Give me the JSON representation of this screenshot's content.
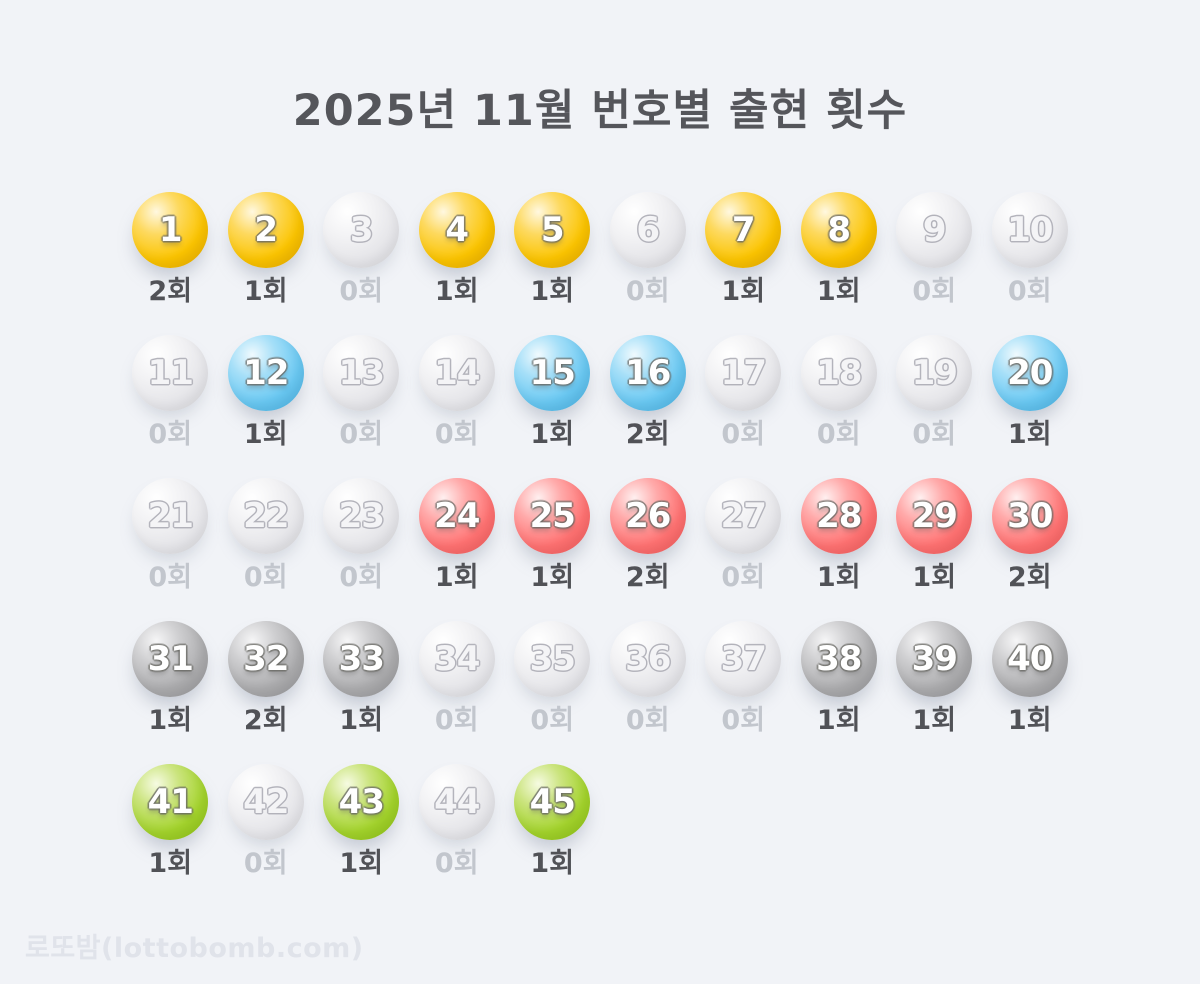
{
  "title": "2025년 11월 번호별 출현 횟수",
  "watermark": "로또밤(lottobomb.com)",
  "count_suffix": "회",
  "colors": {
    "background": "#F1F3F7",
    "title_text": "#55565B",
    "count_active_text": "#515257",
    "count_zero_text": "#C2C6CD",
    "watermark_text": "#E0E3EA",
    "ball_yellow": "#FBC400",
    "ball_blue": "#69C8F2",
    "ball_red": "#FF7272",
    "ball_gray": "#ACACAE",
    "ball_green": "#A3D32C",
    "ball_inactive": "#E3E3E7"
  },
  "balls": [
    {
      "number": 1,
      "count": 2,
      "group": "yellow"
    },
    {
      "number": 2,
      "count": 1,
      "group": "yellow"
    },
    {
      "number": 3,
      "count": 0,
      "group": "yellow"
    },
    {
      "number": 4,
      "count": 1,
      "group": "yellow"
    },
    {
      "number": 5,
      "count": 1,
      "group": "yellow"
    },
    {
      "number": 6,
      "count": 0,
      "group": "yellow"
    },
    {
      "number": 7,
      "count": 1,
      "group": "yellow"
    },
    {
      "number": 8,
      "count": 1,
      "group": "yellow"
    },
    {
      "number": 9,
      "count": 0,
      "group": "yellow"
    },
    {
      "number": 10,
      "count": 0,
      "group": "yellow"
    },
    {
      "number": 11,
      "count": 0,
      "group": "blue"
    },
    {
      "number": 12,
      "count": 1,
      "group": "blue"
    },
    {
      "number": 13,
      "count": 0,
      "group": "blue"
    },
    {
      "number": 14,
      "count": 0,
      "group": "blue"
    },
    {
      "number": 15,
      "count": 1,
      "group": "blue"
    },
    {
      "number": 16,
      "count": 2,
      "group": "blue"
    },
    {
      "number": 17,
      "count": 0,
      "group": "blue"
    },
    {
      "number": 18,
      "count": 0,
      "group": "blue"
    },
    {
      "number": 19,
      "count": 0,
      "group": "blue"
    },
    {
      "number": 20,
      "count": 1,
      "group": "blue"
    },
    {
      "number": 21,
      "count": 0,
      "group": "red"
    },
    {
      "number": 22,
      "count": 0,
      "group": "red"
    },
    {
      "number": 23,
      "count": 0,
      "group": "red"
    },
    {
      "number": 24,
      "count": 1,
      "group": "red"
    },
    {
      "number": 25,
      "count": 1,
      "group": "red"
    },
    {
      "number": 26,
      "count": 2,
      "group": "red"
    },
    {
      "number": 27,
      "count": 0,
      "group": "red"
    },
    {
      "number": 28,
      "count": 1,
      "group": "red"
    },
    {
      "number": 29,
      "count": 1,
      "group": "red"
    },
    {
      "number": 30,
      "count": 2,
      "group": "red"
    },
    {
      "number": 31,
      "count": 1,
      "group": "gray"
    },
    {
      "number": 32,
      "count": 2,
      "group": "gray"
    },
    {
      "number": 33,
      "count": 1,
      "group": "gray"
    },
    {
      "number": 34,
      "count": 0,
      "group": "gray"
    },
    {
      "number": 35,
      "count": 0,
      "group": "gray"
    },
    {
      "number": 36,
      "count": 0,
      "group": "gray"
    },
    {
      "number": 37,
      "count": 0,
      "group": "gray"
    },
    {
      "number": 38,
      "count": 1,
      "group": "gray"
    },
    {
      "number": 39,
      "count": 1,
      "group": "gray"
    },
    {
      "number": 40,
      "count": 1,
      "group": "gray"
    },
    {
      "number": 41,
      "count": 1,
      "group": "green"
    },
    {
      "number": 42,
      "count": 0,
      "group": "green"
    },
    {
      "number": 43,
      "count": 1,
      "group": "green"
    },
    {
      "number": 44,
      "count": 0,
      "group": "green"
    },
    {
      "number": 45,
      "count": 1,
      "group": "green"
    }
  ],
  "chart_data": {
    "type": "table",
    "title": "2025년 11월 번호별 출현 횟수",
    "unit": "회",
    "categories": [
      1,
      2,
      3,
      4,
      5,
      6,
      7,
      8,
      9,
      10,
      11,
      12,
      13,
      14,
      15,
      16,
      17,
      18,
      19,
      20,
      21,
      22,
      23,
      24,
      25,
      26,
      27,
      28,
      29,
      30,
      31,
      32,
      33,
      34,
      35,
      36,
      37,
      38,
      39,
      40,
      41,
      42,
      43,
      44,
      45
    ],
    "values": [
      2,
      1,
      0,
      1,
      1,
      0,
      1,
      1,
      0,
      0,
      0,
      1,
      0,
      0,
      1,
      2,
      0,
      0,
      0,
      1,
      0,
      0,
      0,
      1,
      1,
      2,
      0,
      1,
      1,
      2,
      1,
      2,
      1,
      0,
      0,
      0,
      0,
      1,
      1,
      1,
      1,
      0,
      1,
      0,
      1
    ],
    "layout": {
      "columns_per_row": 10,
      "rows": 5,
      "legend": "off",
      "grid": "off"
    },
    "color_groups": {
      "1-10": "yellow",
      "11-20": "blue",
      "21-30": "red",
      "31-40": "gray",
      "41-45": "green",
      "zero_count": "inactive-gray"
    }
  }
}
